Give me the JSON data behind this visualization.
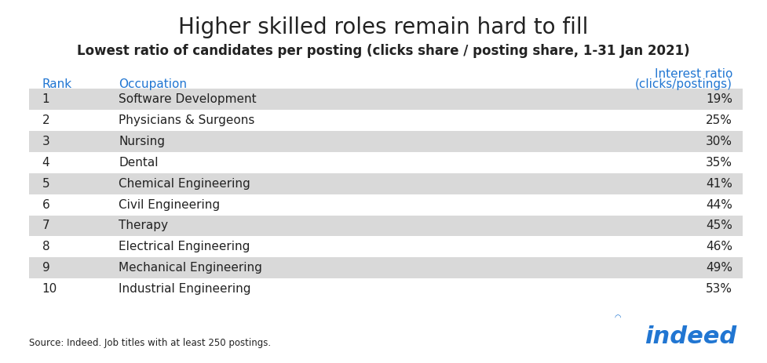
{
  "title": "Higher skilled roles remain hard to fill",
  "subtitle": "Lowest ratio of candidates per posting (clicks share / posting share, 1-31 Jan 2021)",
  "col_header_rank": "Rank",
  "col_header_occupation": "Occupation",
  "col_header_interest_line1": "Interest ratio",
  "col_header_interest_line2": "(clicks/postings)",
  "header_color": "#2176d2",
  "rows": [
    {
      "rank": "1",
      "occupation": "Software Development",
      "value": "19%",
      "shaded": true
    },
    {
      "rank": "2",
      "occupation": "Physicians & Surgeons",
      "value": "25%",
      "shaded": false
    },
    {
      "rank": "3",
      "occupation": "Nursing",
      "value": "30%",
      "shaded": true
    },
    {
      "rank": "4",
      "occupation": "Dental",
      "value": "35%",
      "shaded": false
    },
    {
      "rank": "5",
      "occupation": "Chemical Engineering",
      "value": "41%",
      "shaded": true
    },
    {
      "rank": "6",
      "occupation": "Civil Engineering",
      "value": "44%",
      "shaded": false
    },
    {
      "rank": "7",
      "occupation": "Therapy",
      "value": "45%",
      "shaded": true
    },
    {
      "rank": "8",
      "occupation": "Electrical Engineering",
      "value": "46%",
      "shaded": false
    },
    {
      "rank": "9",
      "occupation": "Mechanical Engineering",
      "value": "49%",
      "shaded": true
    },
    {
      "rank": "10",
      "occupation": "Industrial Engineering",
      "value": "53%",
      "shaded": false
    }
  ],
  "shaded_color": "#d9d9d9",
  "white_color": "#ffffff",
  "background_color": "#ffffff",
  "text_color": "#222222",
  "source_text": "Source: Indeed. Job titles with at least 250 postings.",
  "indeed_color": "#2176d2",
  "title_fontsize": 20,
  "subtitle_fontsize": 12,
  "header_fontsize": 11,
  "row_fontsize": 11,
  "source_fontsize": 8.5,
  "indeed_fontsize": 22
}
